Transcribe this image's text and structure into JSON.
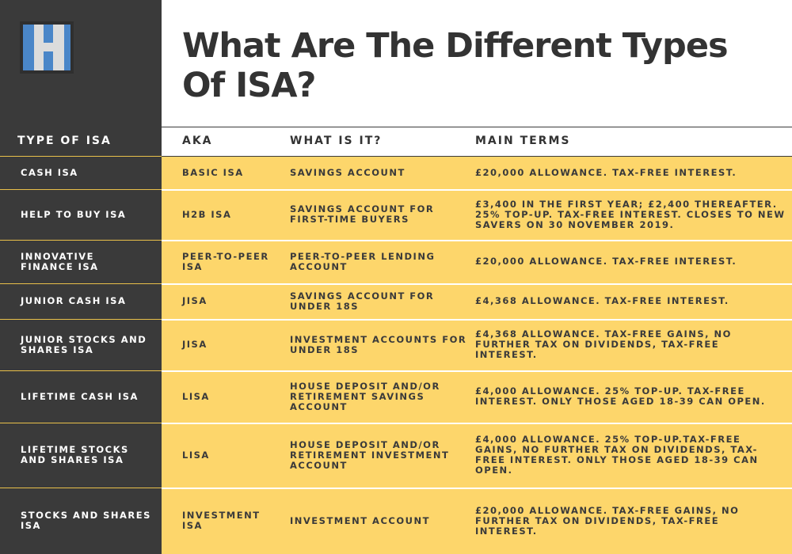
{
  "page": {
    "title": "What Are The Different Types Of ISA?",
    "logo_icon": "h-block-logo-icon",
    "colors": {
      "panel": "#3a3a3a",
      "row": "#fdd66b",
      "logo_blue": "#4a86c8",
      "text": "#333333"
    }
  },
  "table": {
    "headers": {
      "type": "TYPE OF ISA",
      "aka": "AKA",
      "what": "WHAT IS IT?",
      "terms": "MAIN TERMS"
    },
    "rows": [
      {
        "type": "CASH ISA",
        "aka": "BASIC ISA",
        "what": "SAVINGS ACCOUNT",
        "terms": "£20,000 ALLOWANCE. TAX-FREE INTEREST."
      },
      {
        "type": "HELP TO BUY ISA",
        "aka": "H2B ISA",
        "what": "SAVINGS ACCOUNT FOR FIRST-TIME BUYERS",
        "terms": "£3,400 IN THE FIRST YEAR; £2,400 THEREAFTER. 25% TOP-UP. TAX-FREE INTEREST. CLOSES TO NEW SAVERS ON 30 NOVEMBER 2019."
      },
      {
        "type": "INNOVATIVE FINANCE ISA",
        "aka": "PEER-TO-PEER ISA",
        "what": "PEER-TO-PEER LENDING ACCOUNT",
        "terms": "£20,000 ALLOWANCE. TAX-FREE INTEREST."
      },
      {
        "type": "JUNIOR CASH ISA",
        "aka": "JISA",
        "what": "SAVINGS ACCOUNT FOR UNDER 18S",
        "terms": "£4,368 ALLOWANCE. TAX-FREE INTEREST."
      },
      {
        "type": "JUNIOR STOCKS AND SHARES ISA",
        "aka": "JISA",
        "what": "INVESTMENT ACCOUNTS FOR UNDER 18S",
        "terms": "£4,368 ALLOWANCE. TAX-FREE GAINS, NO FURTHER TAX ON DIVIDENDS, TAX-FREE INTEREST."
      },
      {
        "type": "LIFETIME CASH ISA",
        "aka": "LISA",
        "what": "HOUSE DEPOSIT AND/OR RETIREMENT SAVINGS ACCOUNT",
        "terms": "£4,000 ALLOWANCE. 25% TOP-UP. TAX-FREE INTEREST. ONLY THOSE AGED 18-39 CAN OPEN."
      },
      {
        "type": "LIFETIME STOCKS AND SHARES ISA",
        "aka": "LISA",
        "what": "HOUSE DEPOSIT AND/OR RETIREMENT INVESTMENT ACCOUNT",
        "terms": "£4,000 ALLOWANCE. 25% TOP-UP.TAX-FREE GAINS, NO FURTHER TAX ON DIVIDENDS, TAX-FREE INTEREST. ONLY THOSE AGED 18-39 CAN OPEN."
      },
      {
        "type": "STOCKS AND SHARES ISA",
        "aka": "INVESTMENT ISA",
        "what": "INVESTMENT ACCOUNT",
        "terms": "£20,000 ALLOWANCE. TAX-FREE GAINS, NO FURTHER TAX ON DIVIDENDS, TAX-FREE INTEREST."
      }
    ]
  }
}
